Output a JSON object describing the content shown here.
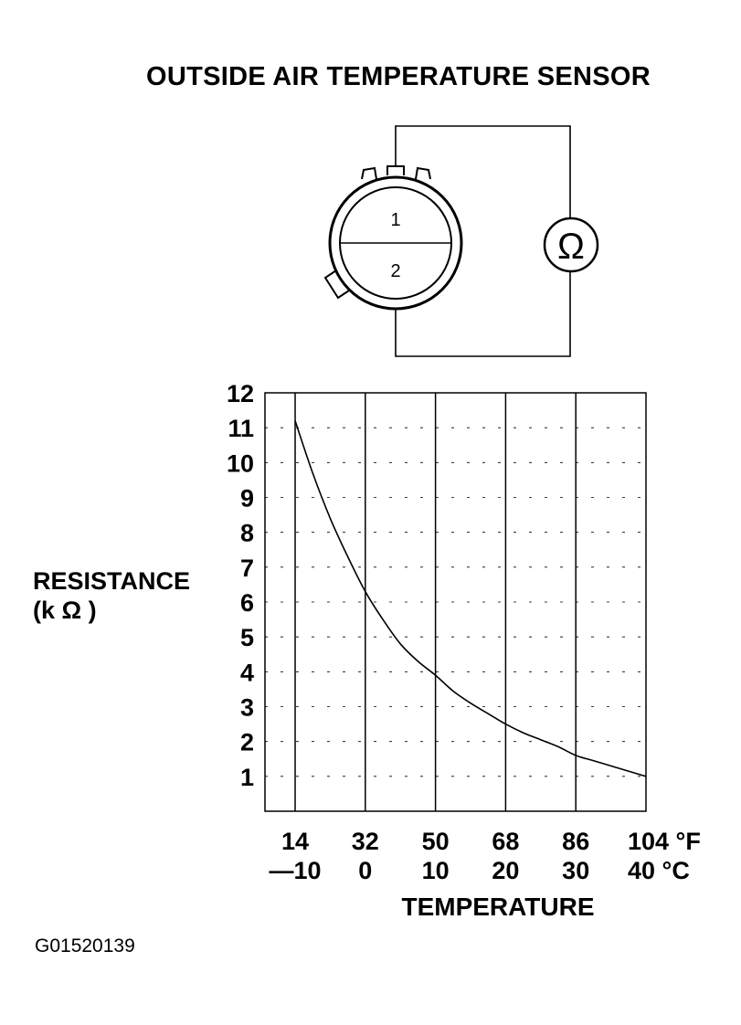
{
  "title": "OUTSIDE AIR TEMPERATURE SENSOR",
  "diagram": {
    "terminal_labels": [
      "1",
      "2"
    ],
    "meter_symbol": "Ω",
    "meter_icon": "ohmmeter-icon"
  },
  "y_axis_label_line1": "RESISTANCE",
  "y_axis_label_line2": "(k Ω )",
  "x_axis_label": "TEMPERATURE",
  "footer_code": "G01520139",
  "chart_data": {
    "type": "line",
    "title": "",
    "xlabel": "TEMPERATURE",
    "ylabel": "RESISTANCE (k Ω )",
    "x_unit_primary": "°F",
    "x_unit_secondary": "°C",
    "x_ticks_f": [
      "14",
      "32",
      "50",
      "68",
      "86",
      "104 °F"
    ],
    "x_ticks_c": [
      "—10",
      "0",
      "10",
      "20",
      "30",
      "40 °C"
    ],
    "y_ticks": [
      "1",
      "2",
      "3",
      "4",
      "5",
      "6",
      "7",
      "8",
      "9",
      "10",
      "11",
      "12"
    ],
    "xlim_c": [
      -14.3,
      40
    ],
    "ylim": [
      0,
      12
    ],
    "grid": true,
    "series": [
      {
        "x_c": [
          -10,
          -7.5,
          -5,
          -2.5,
          0,
          2.5,
          5,
          7.5,
          10,
          12.5,
          15,
          17.5,
          20,
          22.5,
          25,
          27.5,
          30,
          32.5,
          35,
          37.5,
          40
        ],
        "y": [
          11.2,
          9.7,
          8.4,
          7.3,
          6.3,
          5.5,
          4.8,
          4.3,
          3.9,
          3.45,
          3.1,
          2.8,
          2.5,
          2.25,
          2.05,
          1.85,
          1.6,
          1.45,
          1.3,
          1.15,
          1.0
        ]
      }
    ]
  }
}
